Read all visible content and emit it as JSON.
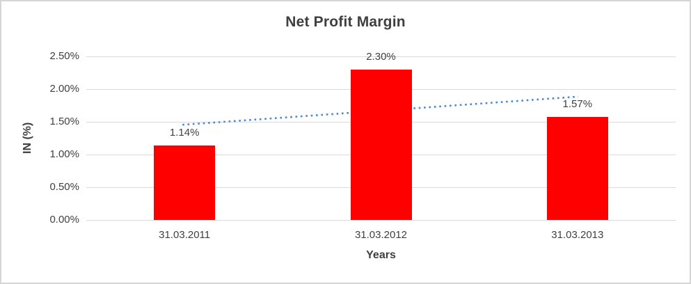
{
  "chart_data": {
    "type": "bar",
    "title": "Net Profit Margin",
    "xlabel": "Years",
    "ylabel": "IN (%)",
    "categories": [
      "31.03.2011",
      "31.03.2012",
      "31.03.2013"
    ],
    "values": [
      1.14,
      2.3,
      1.57
    ],
    "data_labels": [
      "1.14%",
      "2.30%",
      "1.57%"
    ],
    "yticks": [
      "0.00%",
      "0.50%",
      "1.00%",
      "1.50%",
      "2.00%",
      "2.50%"
    ],
    "ytick_values": [
      0,
      0.5,
      1.0,
      1.5,
      2.0,
      2.5
    ],
    "ylim": [
      0,
      2.5
    ],
    "grid": true,
    "legend": false,
    "trendline": {
      "type": "linear",
      "style": "dotted",
      "y_start": 1.455,
      "y_end": 1.885
    },
    "colors": {
      "bar": "#ff0000",
      "trendline": "#4a86d2",
      "title_text": "#3f3f3f",
      "axis_text": "#404040",
      "gridline": "#d9d9d9",
      "frame_border": "#d5d5d5",
      "background": "#ffffff"
    }
  }
}
